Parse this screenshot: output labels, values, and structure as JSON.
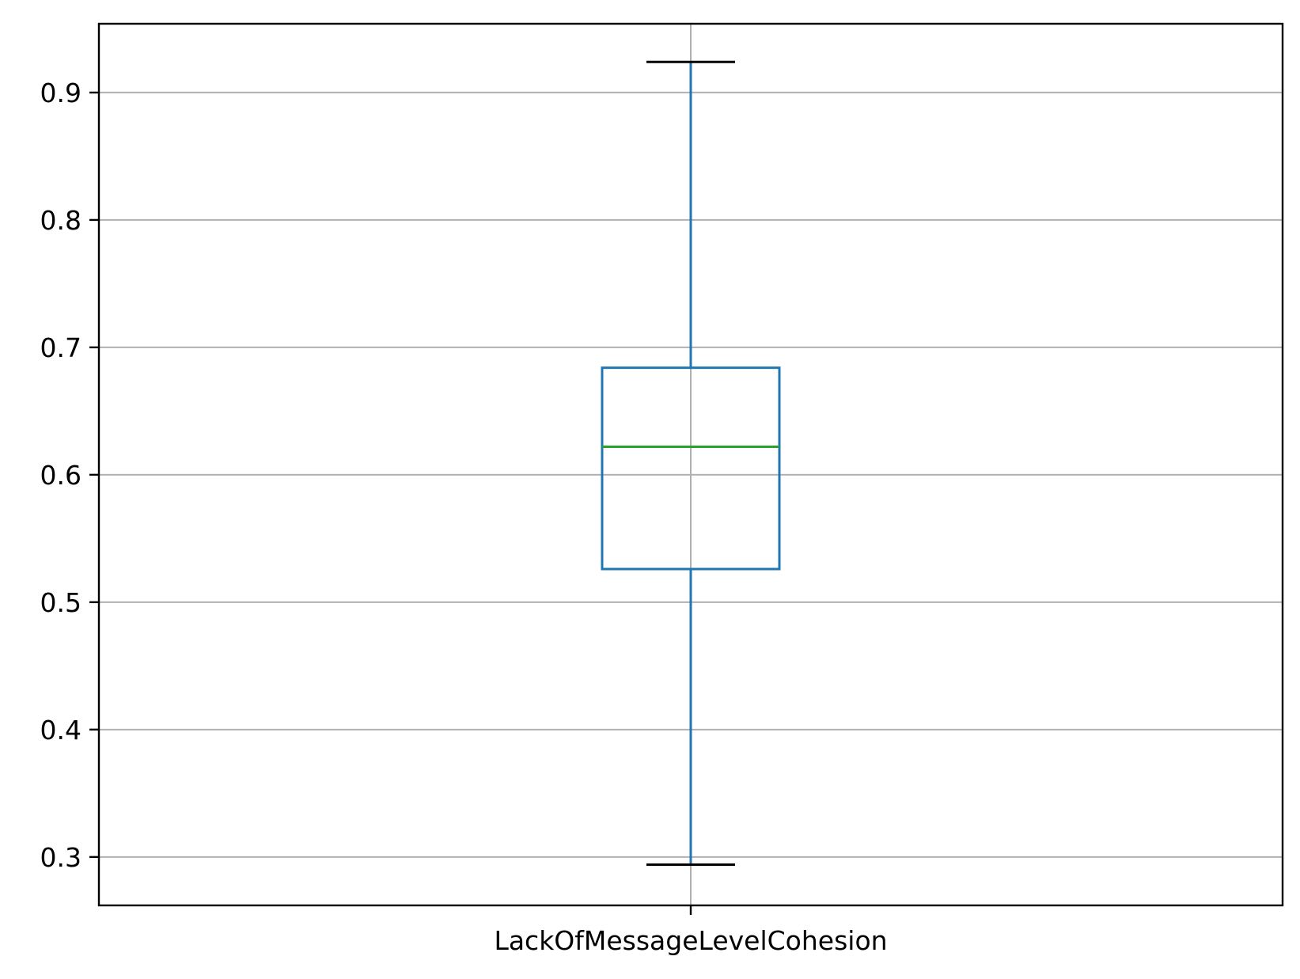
{
  "chart_data": {
    "type": "boxplot",
    "categories": [
      "LackOfMessageLevelCohesion"
    ],
    "boxes": [
      {
        "category": "LackOfMessageLevelCohesion",
        "whisker_low": 0.294,
        "q1": 0.526,
        "median": 0.622,
        "q3": 0.684,
        "whisker_high": 0.924
      }
    ],
    "title": "",
    "xlabel": "",
    "ylabel": "",
    "ylim": [
      0.262,
      0.954
    ],
    "yticks": [
      0.3,
      0.4,
      0.5,
      0.6,
      0.7,
      0.8,
      0.9
    ],
    "ytick_labels": [
      "0.3",
      "0.4",
      "0.5",
      "0.6",
      "0.7",
      "0.8",
      "0.9"
    ],
    "grid": true,
    "colors": {
      "box": "#1f77b4",
      "median": "#2ca02c",
      "caps": "#000000",
      "grid": "#b0b0b0",
      "axes": "#000000"
    }
  }
}
